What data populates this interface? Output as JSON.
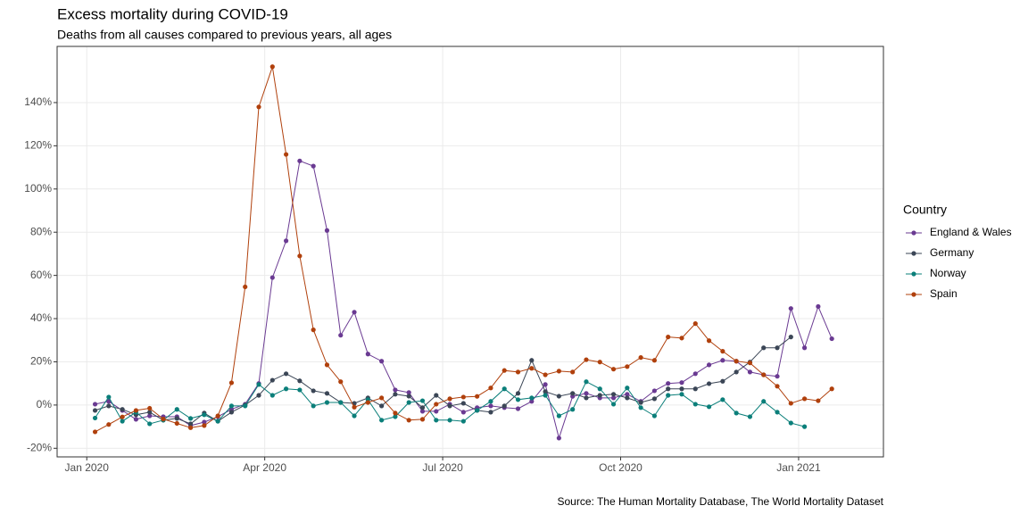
{
  "chart_data": {
    "type": "line",
    "title": "Excess mortality during COVID-19",
    "subtitle": "Deaths from all causes compared to previous years, all ages",
    "caption": "Source: The Human Mortality Database, The World Mortality Dataset",
    "legend_title": "Country",
    "legend_position": "right",
    "grid": true,
    "x": [
      0.14,
      0.37,
      0.6,
      0.83,
      1.06,
      1.29,
      1.52,
      1.75,
      1.98,
      2.21,
      2.44,
      2.67,
      2.9,
      3.13,
      3.36,
      3.59,
      3.82,
      4.05,
      4.28,
      4.51,
      4.74,
      4.97,
      5.2,
      5.43,
      5.66,
      5.89,
      6.12,
      6.35,
      6.58,
      6.81,
      7.04,
      7.27,
      7.5,
      7.73,
      7.96,
      8.19,
      8.42,
      8.65,
      8.88,
      9.11,
      9.34,
      9.57,
      9.8,
      10.03,
      10.26,
      10.49,
      10.72,
      10.95,
      11.18,
      11.41,
      11.64,
      11.87,
      12.1,
      12.33,
      12.56
    ],
    "xlim": [
      -0.5,
      13.43
    ],
    "xticks": [
      {
        "value": 0,
        "label": "Jan 2020"
      },
      {
        "value": 3,
        "label": "Apr 2020"
      },
      {
        "value": 6,
        "label": "Jul 2020"
      },
      {
        "value": 9,
        "label": "Oct 2020"
      },
      {
        "value": 12,
        "label": "Jan 2021"
      }
    ],
    "ylim": [
      -24,
      166
    ],
    "yticks": [
      {
        "value": -20,
        "label": "-20%"
      },
      {
        "value": 0,
        "label": "0%"
      },
      {
        "value": 20,
        "label": "20%"
      },
      {
        "value": 40,
        "label": "40%"
      },
      {
        "value": 60,
        "label": "60%"
      },
      {
        "value": 80,
        "label": "80%"
      },
      {
        "value": 100,
        "label": "100%"
      },
      {
        "value": 120,
        "label": "120%"
      },
      {
        "value": 140,
        "label": "140%"
      }
    ],
    "series": [
      {
        "name": "England & Wales",
        "color": "#6a3a92",
        "values": [
          0.4,
          1.7,
          -2.5,
          -6.6,
          -5,
          -5.4,
          -5.4,
          -9.5,
          -7.9,
          -5.4,
          -2,
          0.4,
          10,
          59,
          76,
          113,
          110.6,
          80.8,
          32.3,
          43,
          23.6,
          20.3,
          7,
          5.8,
          -2.9,
          -2.9,
          0.4,
          -3.3,
          -1.2,
          -0.4,
          -1.2,
          -1.7,
          1.7,
          9.5,
          -15.3,
          4,
          5.4,
          3.3,
          3.3,
          5,
          1.7,
          6.6,
          10,
          10.4,
          14.5,
          18.6,
          20.7,
          20.3,
          15.3,
          14,
          13.3,
          44.7,
          26.5,
          45.6,
          30.7
        ]
      },
      {
        "name": "Germany",
        "color": "#3b4656",
        "values": [
          -2.5,
          -0.4,
          -2,
          -4.5,
          -3.3,
          -7,
          -6.2,
          -8.7,
          -3.7,
          -7.5,
          -3.3,
          0,
          4.5,
          11.5,
          14.5,
          11.2,
          6.6,
          5.4,
          1.2,
          0.8,
          3.3,
          -0.4,
          5,
          4.1,
          -1.2,
          4.5,
          -0.4,
          0.8,
          -2.5,
          -3.3,
          -0.4,
          5.4,
          20.7,
          6.2,
          4.1,
          5.4,
          3.3,
          4.5,
          5,
          3.3,
          1.2,
          2.9,
          7.5,
          7.5,
          7.5,
          9.9,
          11,
          15.3,
          19.9,
          26.5,
          26.5,
          31.5,
          null,
          null,
          null
        ]
      },
      {
        "name": "Norway",
        "color": "#0b7f7a",
        "values": [
          -6,
          3.7,
          -7.5,
          -3.3,
          -8.7,
          -7,
          -2,
          -6.2,
          -4.5,
          -7.5,
          -0.4,
          -0.4,
          9.5,
          4.5,
          7.5,
          7,
          -0.4,
          1.2,
          1.2,
          -5,
          2.5,
          -7,
          -5.4,
          1.2,
          2,
          -7,
          -7,
          -7.5,
          -2.5,
          1.7,
          7.5,
          2.5,
          3.3,
          4.5,
          -5,
          -2,
          10.8,
          7.5,
          0.4,
          7.9,
          -1.2,
          -5,
          4.5,
          5,
          0.4,
          -0.8,
          2.5,
          -3.7,
          -5.4,
          1.7,
          -3.3,
          -8.3,
          -10,
          null,
          null
        ]
      },
      {
        "name": "Spain",
        "color": "#b0400c",
        "values": [
          -12.4,
          -9,
          -5.5,
          -2.5,
          -1.5,
          -6.5,
          -8.5,
          -10.5,
          -9.5,
          -5,
          10.3,
          54.7,
          138,
          156.6,
          116,
          69,
          34.8,
          18.6,
          10.8,
          -1,
          1.2,
          3.3,
          -3.7,
          -7,
          -6.6,
          0.4,
          2.9,
          3.7,
          4,
          7.9,
          16,
          15.3,
          17,
          14,
          15.7,
          15.3,
          21,
          19.9,
          16.6,
          17.8,
          22,
          20.7,
          31.5,
          31,
          37.7,
          29.8,
          24.9,
          20.3,
          19.5,
          14,
          8.7,
          0.8,
          2.9,
          2,
          7.5
        ]
      }
    ]
  }
}
